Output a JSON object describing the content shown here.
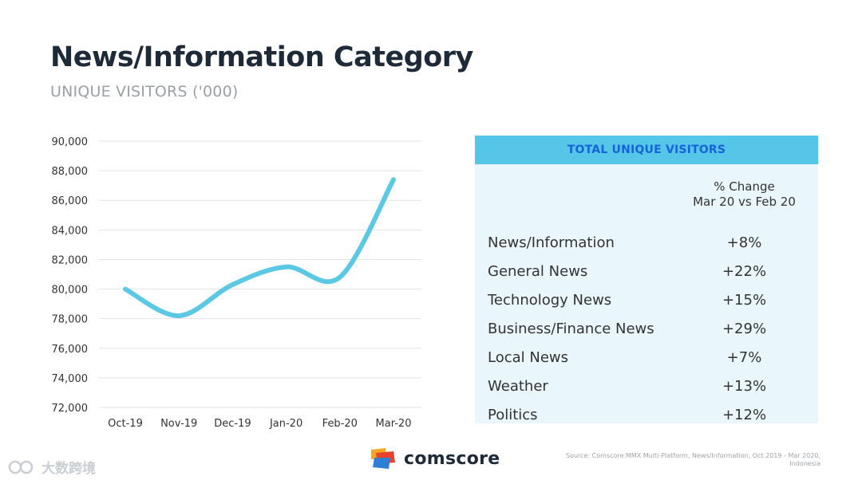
{
  "header": {
    "title": "News/Information Category",
    "subtitle": "UNIQUE VISITORS ('000)"
  },
  "chart_data": {
    "type": "line",
    "title": "",
    "xlabel": "",
    "ylabel": "",
    "categories": [
      "Oct-19",
      "Nov-19",
      "Dec-19",
      "Jan-20",
      "Feb-20",
      "Mar-20"
    ],
    "series": [
      {
        "values": [
          80000,
          78200,
          80300,
          81500,
          80800,
          87400
        ]
      }
    ],
    "ylim": [
      72000,
      90000
    ],
    "yticks": [
      72000,
      74000,
      76000,
      78000,
      80000,
      82000,
      84000,
      86000,
      88000,
      90000
    ],
    "ytick_labels": [
      "72,000",
      "74,000",
      "76,000",
      "78,000",
      "80,000",
      "82,000",
      "84,000",
      "86,000",
      "88,000",
      "90,000"
    ],
    "grid": true,
    "line_color": "#5bc8e4"
  },
  "table": {
    "header": "TOTAL UNIQUE VISITORS",
    "column_header_line1": "% Change",
    "column_header_line2": "Mar 20 vs Feb 20",
    "rows": [
      {
        "name": "News/Information",
        "value": "+8%"
      },
      {
        "name": "General News",
        "value": "+22%"
      },
      {
        "name": "Technology News",
        "value": "+15%"
      },
      {
        "name": "Business/Finance News",
        "value": "+29%"
      },
      {
        "name": "Local News",
        "value": "+7%"
      },
      {
        "name": "Weather",
        "value": "+13%"
      },
      {
        "name": "Politics",
        "value": "+12%"
      }
    ],
    "header_bg": "#55c5e8",
    "header_text_color": "#1565d8",
    "panel_bg": "#e9f6fc"
  },
  "footer": {
    "logo_text": "comscore",
    "logo_icon": "comscore-logo-icon",
    "source_text": "Source: Comscore MMX Multi-Platform, News/Information, Oct 2019 - Mar 2020, Indonesia",
    "watermark_text": "大数跨境",
    "watermark_icon": "watermark-logo-icon"
  }
}
